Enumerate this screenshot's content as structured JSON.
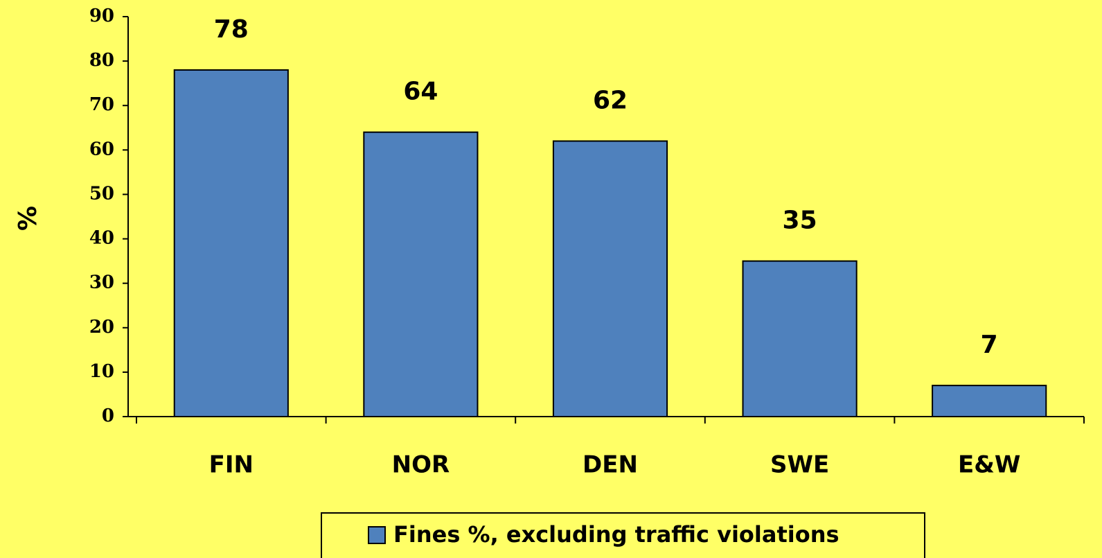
{
  "chart_data": {
    "type": "bar",
    "y_label": "%",
    "categories": [
      "FIN",
      "NOR",
      "DEN",
      "SWE",
      "E&W"
    ],
    "series": [
      {
        "name": "Fines %, excluding traffic violations",
        "color": "#4f81bd",
        "values": [
          78,
          64,
          62,
          35,
          7
        ]
      }
    ],
    "ylim": [
      0,
      90
    ],
    "yticks": [
      0,
      10,
      20,
      30,
      40,
      50,
      60,
      70,
      80,
      90
    ],
    "grid": false,
    "legend": "bottom",
    "background": "#ffff66"
  }
}
